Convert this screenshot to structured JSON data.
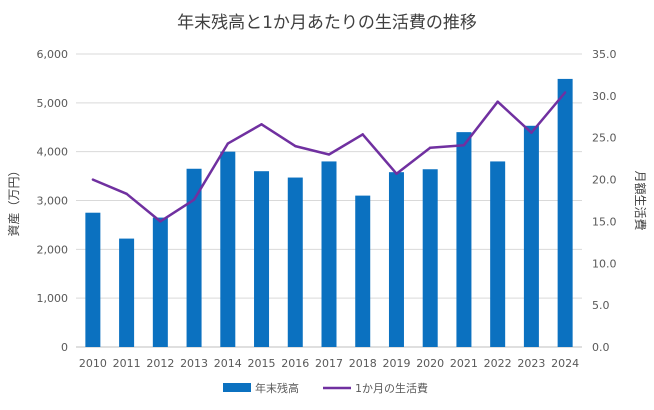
{
  "chart_data": {
    "type": "bar+line",
    "title": "年末残高と1か月あたりの生活費の推移",
    "categories": [
      "2010",
      "2011",
      "2012",
      "2013",
      "2014",
      "2015",
      "2016",
      "2017",
      "2018",
      "2019",
      "2020",
      "2021",
      "2022",
      "2023",
      "2024"
    ],
    "series": [
      {
        "name": "年末残高",
        "type": "bar",
        "axis": "left",
        "color": "#0B71C0",
        "values": [
          2750,
          2220,
          2650,
          3650,
          4000,
          3600,
          3470,
          3800,
          3100,
          3580,
          3640,
          4400,
          3800,
          4530,
          5490
        ]
      },
      {
        "name": "1か月の生活費",
        "type": "line",
        "axis": "right",
        "color": "#7030A0",
        "values": [
          20.0,
          18.3,
          15.0,
          17.6,
          24.3,
          26.6,
          24.0,
          23.0,
          25.4,
          20.7,
          23.8,
          24.1,
          29.3,
          25.6,
          30.4
        ]
      }
    ],
    "ylabel_left": "資産（万円）",
    "ylabel_right": "月額生活費",
    "ylim_left": [
      0,
      6000
    ],
    "ylim_right": [
      0,
      35
    ],
    "yticks_left": [
      "0",
      "1,000",
      "2,000",
      "3,000",
      "4,000",
      "5,000",
      "6,000"
    ],
    "yticks_right": [
      "0.0",
      "5.0",
      "10.0",
      "15.0",
      "20.0",
      "25.0",
      "30.0",
      "35.0"
    ],
    "grid": true,
    "legend_position": "bottom"
  }
}
